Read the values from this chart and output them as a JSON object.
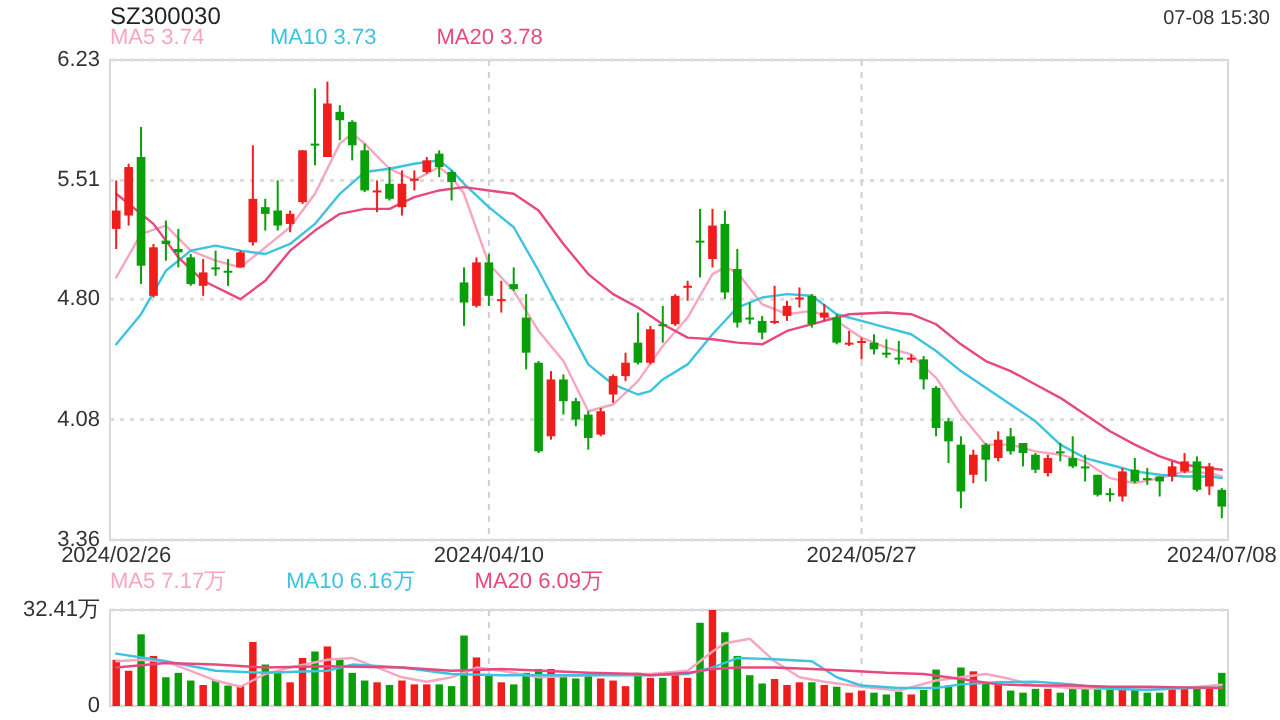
{
  "chart_data": [
    {
      "type": "candlestick",
      "title": "SZ300030",
      "annotations": [
        "07-08 15:30"
      ],
      "legend": "top left",
      "grid": true,
      "categories": [
        "2024/02/26",
        null,
        null,
        null,
        null,
        null,
        null,
        null,
        null,
        null,
        null,
        null,
        null,
        null,
        null,
        null,
        null,
        null,
        null,
        null,
        null,
        null,
        null,
        null,
        null,
        null,
        null,
        null,
        null,
        null,
        "2024/04/10",
        null,
        null,
        null,
        null,
        null,
        null,
        null,
        null,
        null,
        null,
        null,
        null,
        null,
        null,
        null,
        null,
        null,
        null,
        null,
        null,
        null,
        null,
        null,
        null,
        null,
        null,
        null,
        null,
        null,
        "2024/05/27",
        null,
        null,
        null,
        null,
        null,
        null,
        null,
        null,
        null,
        null,
        null,
        null,
        null,
        null,
        null,
        null,
        null,
        null,
        null,
        null,
        null,
        null,
        null,
        null,
        null,
        null,
        null,
        null,
        "2024/07/08"
      ],
      "ylim": [
        3.36,
        6.23
      ],
      "yticks": [
        6.23,
        5.51,
        {
          "value": 4.8,
          "label": "4.80"
        },
        4.08,
        3.36
      ],
      "series": [
        {
          "type": "line",
          "name": "MA5 3.74",
          "color": "#f7a6c0",
          "values": [
            4.93,
            null,
            5.19,
            null,
            5.24,
            null,
            5.09,
            null,
            5.03,
            null,
            4.99,
            null,
            5.11,
            null,
            5.23,
            null,
            5.43,
            null,
            5.73,
            5.79,
            5.73,
            null,
            5.58,
            null,
            5.51,
            null,
            5.59,
            5.53,
            5.43,
            null,
            5.01,
            null,
            4.85,
            null,
            4.61,
            null,
            4.43,
            null,
            4.13,
            null,
            4.17,
            null,
            4.31,
            null,
            4.52,
            null,
            4.69,
            null,
            4.95,
            4.99,
            4.96,
            null,
            4.77,
            null,
            4.71,
            null,
            4.73,
            null,
            4.67,
            null,
            4.57,
            null,
            4.51,
            null,
            4.47,
            null,
            4.33,
            null,
            4.11,
            null,
            3.93,
            null,
            3.93,
            null,
            3.89,
            null,
            3.87,
            null,
            3.83,
            null,
            3.73,
            null,
            3.7,
            null,
            3.73,
            null,
            3.77,
            null,
            3.76,
            3.74
          ]
        },
        {
          "type": "line",
          "name": "MA10 3.73",
          "color": "#3cc3df",
          "values": [
            4.53,
            null,
            4.71,
            null,
            4.97,
            null,
            5.09,
            null,
            5.12,
            null,
            5.09,
            null,
            5.07,
            null,
            5.13,
            null,
            5.25,
            null,
            5.43,
            null,
            5.56,
            null,
            5.58,
            null,
            5.61,
            null,
            5.63,
            5.57,
            5.49,
            null,
            5.35,
            null,
            5.23,
            null,
            4.97,
            null,
            4.69,
            null,
            4.41,
            null,
            4.29,
            null,
            4.23,
            4.25,
            4.32,
            null,
            4.41,
            null,
            4.59,
            null,
            4.75,
            null,
            4.81,
            null,
            4.83,
            null,
            4.82,
            null,
            4.71,
            null,
            4.67,
            null,
            4.63,
            null,
            4.59,
            null,
            4.49,
            null,
            4.37,
            null,
            4.27,
            null,
            4.17,
            null,
            4.07,
            null,
            3.93,
            null,
            3.85,
            null,
            3.81,
            null,
            3.77,
            null,
            3.75,
            null,
            3.74,
            null,
            3.74,
            3.73
          ]
        },
        {
          "type": "line",
          "name": "MA20 3.78",
          "color": "#e9487e",
          "values": [
            5.43,
            null,
            null,
            5.25,
            null,
            5.05,
            null,
            4.91,
            null,
            null,
            4.8,
            null,
            4.91,
            null,
            5.09,
            null,
            5.21,
            null,
            5.31,
            null,
            5.34,
            null,
            5.34,
            null,
            5.41,
            null,
            5.45,
            null,
            5.47,
            null,
            5.45,
            null,
            5.43,
            null,
            5.33,
            null,
            5.13,
            null,
            4.95,
            null,
            4.83,
            null,
            4.75,
            null,
            4.65,
            null,
            4.57,
            null,
            4.56,
            null,
            4.54,
            null,
            4.53,
            null,
            4.61,
            null,
            null,
            4.67,
            null,
            4.71,
            null,
            null,
            4.72,
            null,
            4.71,
            null,
            4.65,
            null,
            4.53,
            null,
            4.43,
            null,
            4.37,
            null,
            4.29,
            null,
            4.21,
            null,
            4.11,
            null,
            4.01,
            null,
            3.93,
            null,
            3.86,
            null,
            3.81,
            null,
            3.79,
            3.78
          ]
        },
        {
          "type": "candlestick",
          "ohlc": [
            [
              5.22,
              5.51,
              5.1,
              5.33
            ],
            [
              5.3,
              5.61,
              5.24,
              5.59
            ],
            [
              5.65,
              5.83,
              4.89,
              5.0
            ],
            [
              4.82,
              5.13,
              4.81,
              5.11
            ],
            [
              5.15,
              5.27,
              5.03,
              5.13
            ],
            [
              5.1,
              5.22,
              4.99,
              5.08
            ],
            [
              5.05,
              5.07,
              4.88,
              4.89
            ],
            [
              4.88,
              5.04,
              4.82,
              4.96
            ],
            [
              4.99,
              5.09,
              4.94,
              4.98
            ],
            [
              4.97,
              5.04,
              4.88,
              4.96
            ],
            [
              4.99,
              5.09,
              4.99,
              5.08
            ],
            [
              5.14,
              5.72,
              5.12,
              5.4
            ],
            [
              5.35,
              5.4,
              5.21,
              5.31
            ],
            [
              5.33,
              5.51,
              5.21,
              5.24
            ],
            [
              5.25,
              5.33,
              5.2,
              5.31
            ],
            [
              5.38,
              5.69,
              5.37,
              5.69
            ],
            [
              5.73,
              6.06,
              5.6,
              5.72
            ],
            [
              5.65,
              6.1,
              5.65,
              5.97
            ],
            [
              5.92,
              5.96,
              5.75,
              5.87
            ],
            [
              5.86,
              5.87,
              5.63,
              5.72
            ],
            [
              5.69,
              5.73,
              5.44,
              5.45
            ],
            [
              5.44,
              5.51,
              5.32,
              5.45
            ],
            [
              5.49,
              5.59,
              5.39,
              5.4
            ],
            [
              5.35,
              5.57,
              5.3,
              5.49
            ],
            [
              5.51,
              5.57,
              5.45,
              5.52
            ],
            [
              5.56,
              5.65,
              5.55,
              5.63
            ],
            [
              5.67,
              5.69,
              5.53,
              5.59
            ],
            [
              5.56,
              5.57,
              5.39,
              5.5
            ],
            [
              4.9,
              4.99,
              4.64,
              4.78
            ],
            [
              4.76,
              5.05,
              4.75,
              5.02
            ],
            [
              5.02,
              5.07,
              4.76,
              4.82
            ],
            [
              4.79,
              4.91,
              4.72,
              4.8
            ],
            [
              4.89,
              4.99,
              4.85,
              4.86
            ],
            [
              4.69,
              4.83,
              4.38,
              4.48
            ],
            [
              4.42,
              4.43,
              3.88,
              3.89
            ],
            [
              3.98,
              4.37,
              3.96,
              4.32
            ],
            [
              4.32,
              4.35,
              4.11,
              4.19
            ],
            [
              4.19,
              4.21,
              4.04,
              4.08
            ],
            [
              4.11,
              4.13,
              3.9,
              3.97
            ],
            [
              3.99,
              4.15,
              3.98,
              4.13
            ],
            [
              4.23,
              4.35,
              4.18,
              4.34
            ],
            [
              4.34,
              4.48,
              4.31,
              4.42
            ],
            [
              4.54,
              4.72,
              4.41,
              4.42
            ],
            [
              4.42,
              4.64,
              4.41,
              4.62
            ],
            [
              4.65,
              4.76,
              4.54,
              4.64
            ],
            [
              4.65,
              4.83,
              4.64,
              4.82
            ],
            [
              4.87,
              4.91,
              4.79,
              4.88
            ],
            [
              5.15,
              5.34,
              4.93,
              5.14
            ],
            [
              5.04,
              5.34,
              4.99,
              5.24
            ],
            [
              5.25,
              5.33,
              4.8,
              4.84
            ],
            [
              4.98,
              5.1,
              4.63,
              4.66
            ],
            [
              4.69,
              4.78,
              4.65,
              4.68
            ],
            [
              4.67,
              4.7,
              4.56,
              4.6
            ],
            [
              4.66,
              4.88,
              4.65,
              4.67
            ],
            [
              4.7,
              4.79,
              4.67,
              4.76
            ],
            [
              4.8,
              4.87,
              4.75,
              4.81
            ],
            [
              4.82,
              4.83,
              4.63,
              4.65
            ],
            [
              4.69,
              4.77,
              4.67,
              4.72
            ],
            [
              4.69,
              4.71,
              4.53,
              4.54
            ],
            [
              4.53,
              4.61,
              4.52,
              4.54
            ],
            [
              4.54,
              4.57,
              4.44,
              4.55
            ],
            [
              4.54,
              4.59,
              4.47,
              4.5
            ],
            [
              4.48,
              4.56,
              4.45,
              4.47
            ],
            [
              4.45,
              4.55,
              4.41,
              4.44
            ],
            [
              4.44,
              4.47,
              4.42,
              4.45
            ],
            [
              4.44,
              4.46,
              4.26,
              4.32
            ],
            [
              4.27,
              4.28,
              3.98,
              4.03
            ],
            [
              4.07,
              4.09,
              3.82,
              3.95
            ],
            [
              3.93,
              3.98,
              3.55,
              3.65
            ],
            [
              3.75,
              3.9,
              3.7,
              3.87
            ],
            [
              3.93,
              3.94,
              3.71,
              3.84
            ],
            [
              3.85,
              4.01,
              3.83,
              3.96
            ],
            [
              3.98,
              4.03,
              3.87,
              3.89
            ],
            [
              3.94,
              3.94,
              3.8,
              3.88
            ],
            [
              3.87,
              3.88,
              3.76,
              3.78
            ],
            [
              3.76,
              3.87,
              3.74,
              3.85
            ],
            [
              3.89,
              3.94,
              3.83,
              3.88
            ],
            [
              3.85,
              3.98,
              3.79,
              3.8
            ],
            [
              3.8,
              3.87,
              3.71,
              3.79
            ],
            [
              3.75,
              3.75,
              3.62,
              3.63
            ],
            [
              3.64,
              3.67,
              3.59,
              3.63
            ],
            [
              3.62,
              3.79,
              3.59,
              3.77
            ],
            [
              3.78,
              3.85,
              3.7,
              3.71
            ],
            [
              3.73,
              3.79,
              3.69,
              3.72
            ],
            [
              3.74,
              3.74,
              3.62,
              3.71
            ],
            [
              3.74,
              3.83,
              3.71,
              3.8
            ],
            [
              3.77,
              3.88,
              3.76,
              3.83
            ],
            [
              3.83,
              3.86,
              3.65,
              3.66
            ],
            [
              3.68,
              3.82,
              3.63,
              3.8
            ],
            [
              3.66,
              3.67,
              3.49,
              3.56
            ]
          ],
          "colors": [
            "#f01d1d",
            "#f01d1d",
            "#0a9e0a",
            "#f01d1d",
            "#0a9e0a",
            "#0a9e0a",
            "#0a9e0a",
            "#f01d1d",
            "#0a9e0a",
            "#0a9e0a",
            "#f01d1d",
            "#f01d1d",
            "#0a9e0a",
            "#0a9e0a",
            "#f01d1d",
            "#f01d1d",
            "#0a9e0a",
            "#f01d1d",
            "#0a9e0a",
            "#0a9e0a",
            "#0a9e0a",
            "#f01d1d",
            "#0a9e0a",
            "#f01d1d",
            "#f01d1d",
            "#f01d1d",
            "#0a9e0a",
            "#0a9e0a",
            "#0a9e0a",
            "#f01d1d",
            "#0a9e0a",
            "#f01d1d",
            "#0a9e0a",
            "#0a9e0a",
            "#0a9e0a",
            "#f01d1d",
            "#0a9e0a",
            "#0a9e0a",
            "#0a9e0a",
            "#f01d1d",
            "#f01d1d",
            "#f01d1d",
            "#0a9e0a",
            "#f01d1d",
            "#0a9e0a",
            "#f01d1d",
            "#f01d1d",
            "#0a9e0a",
            "#f01d1d",
            "#0a9e0a",
            "#0a9e0a",
            "#0a9e0a",
            "#0a9e0a",
            "#f01d1d",
            "#f01d1d",
            "#f01d1d",
            "#0a9e0a",
            "#f01d1d",
            "#0a9e0a",
            "#f01d1d",
            "#f01d1d",
            "#0a9e0a",
            "#0a9e0a",
            "#0a9e0a",
            "#f01d1d",
            "#0a9e0a",
            "#0a9e0a",
            "#0a9e0a",
            "#0a9e0a",
            "#f01d1d",
            "#0a9e0a",
            "#f01d1d",
            "#0a9e0a",
            "#0a9e0a",
            "#0a9e0a",
            "#f01d1d",
            "#0a9e0a",
            "#0a9e0a",
            "#0a9e0a",
            "#0a9e0a",
            "#0a9e0a",
            "#f01d1d",
            "#0a9e0a",
            "#0a9e0a",
            "#0a9e0a",
            "#f01d1d",
            "#f01d1d",
            "#0a9e0a",
            "#f01d1d",
            "#0a9e0a"
          ]
        }
      ]
    },
    {
      "type": "bar",
      "legend": "top left",
      "grid": true,
      "tick_labels": "y",
      "categories": [
        null,
        null,
        null,
        null,
        null,
        null,
        null,
        null,
        null,
        null,
        null,
        null,
        null,
        null,
        null,
        null,
        null,
        null,
        null,
        null,
        null,
        null,
        null,
        null,
        null,
        null,
        null,
        null,
        null,
        null,
        null,
        null,
        null,
        null,
        null,
        null,
        null,
        null,
        null,
        null,
        null,
        null,
        null,
        null,
        null,
        null,
        null,
        null,
        null,
        null,
        null,
        null,
        null,
        null,
        null,
        null,
        null,
        null,
        null,
        null,
        null,
        null,
        null,
        null,
        null,
        null,
        null,
        null,
        null,
        null,
        null,
        null,
        null,
        null,
        null,
        null,
        null,
        null,
        null,
        null,
        null,
        null,
        null,
        null,
        null,
        null,
        null,
        null,
        null,
        null
      ],
      "ylim": [
        0,
        32.41
      ],
      "yticks": [
        {
          "value": 32.41,
          "label": "32.41万"
        },
        0
      ],
      "series": [
        {
          "type": "bar",
          "values": [
            15.6,
            11.9,
            24.2,
            16.9,
            9.7,
            11.2,
            8.6,
            7.1,
            8.6,
            6.9,
            6.9,
            21.6,
            14.0,
            11.2,
            8.0,
            16.2,
            18.4,
            20.1,
            15.6,
            11.2,
            8.6,
            8.0,
            7.1,
            8.6,
            7.3,
            7.3,
            7.3,
            6.7,
            23.8,
            16.4,
            10.2,
            8.0,
            7.3,
            11.2,
            12.5,
            12.5,
            10.8,
            9.3,
            10.2,
            9.3,
            8.6,
            6.7,
            11.2,
            9.5,
            9.5,
            11.2,
            9.5,
            28.1,
            32.41,
            24.9,
            16.9,
            10.4,
            7.6,
            9.1,
            7.1,
            8.0,
            8.0,
            7.1,
            6.5,
            4.5,
            5.2,
            4.5,
            3.9,
            4.8,
            3.9,
            5.4,
            12.3,
            6.9,
            13.0,
            11.7,
            7.6,
            7.6,
            5.2,
            4.5,
            5.8,
            5.8,
            4.5,
            6.5,
            5.8,
            6.5,
            5.4,
            5.8,
            5.8,
            4.5,
            4.5,
            6.5,
            5.8,
            5.8,
            5.8,
            11.2
          ],
          "colors": [
            "#f01d1d",
            "#f01d1d",
            "#0a9e0a",
            "#f01d1d",
            "#0a9e0a",
            "#0a9e0a",
            "#0a9e0a",
            "#f01d1d",
            "#0a9e0a",
            "#0a9e0a",
            "#f01d1d",
            "#f01d1d",
            "#0a9e0a",
            "#0a9e0a",
            "#f01d1d",
            "#f01d1d",
            "#0a9e0a",
            "#f01d1d",
            "#0a9e0a",
            "#0a9e0a",
            "#0a9e0a",
            "#f01d1d",
            "#0a9e0a",
            "#f01d1d",
            "#f01d1d",
            "#f01d1d",
            "#0a9e0a",
            "#0a9e0a",
            "#0a9e0a",
            "#f01d1d",
            "#0a9e0a",
            "#f01d1d",
            "#0a9e0a",
            "#0a9e0a",
            "#0a9e0a",
            "#f01d1d",
            "#0a9e0a",
            "#0a9e0a",
            "#0a9e0a",
            "#f01d1d",
            "#f01d1d",
            "#f01d1d",
            "#0a9e0a",
            "#f01d1d",
            "#0a9e0a",
            "#f01d1d",
            "#f01d1d",
            "#0a9e0a",
            "#f01d1d",
            "#0a9e0a",
            "#0a9e0a",
            "#0a9e0a",
            "#0a9e0a",
            "#f01d1d",
            "#f01d1d",
            "#f01d1d",
            "#0a9e0a",
            "#f01d1d",
            "#0a9e0a",
            "#f01d1d",
            "#f01d1d",
            "#0a9e0a",
            "#0a9e0a",
            "#0a9e0a",
            "#f01d1d",
            "#0a9e0a",
            "#0a9e0a",
            "#0a9e0a",
            "#0a9e0a",
            "#f01d1d",
            "#0a9e0a",
            "#f01d1d",
            "#0a9e0a",
            "#0a9e0a",
            "#0a9e0a",
            "#f01d1d",
            "#0a9e0a",
            "#0a9e0a",
            "#0a9e0a",
            "#0a9e0a",
            "#0a9e0a",
            "#f01d1d",
            "#0a9e0a",
            "#0a9e0a",
            "#0a9e0a",
            "#f01d1d",
            "#f01d1d",
            "#0a9e0a",
            "#f01d1d",
            "#0a9e0a"
          ]
        },
        {
          "type": "line",
          "name": "MA5 7.17万",
          "color": "#f7a6c0",
          "values": [
            15.1,
            null,
            15.6,
            null,
            15.1,
            null,
            11.9,
            null,
            8.6,
            null,
            6.5,
            null,
            10.8,
            null,
            13.0,
            null,
            null,
            15.6,
            null,
            16.2,
            null,
            13.0,
            null,
            9.7,
            null,
            8.2,
            null,
            9.7,
            null,
            13.0,
            null,
            11.9,
            null,
            null,
            9.7,
            null,
            null,
            null,
            10.4,
            null,
            null,
            null,
            10.8,
            10.8,
            null,
            null,
            11.9,
            15.1,
            18.4,
            21.2,
            null,
            22.7,
            null,
            15.1,
            null,
            9.7,
            null,
            8.2,
            null,
            null,
            6.5,
            null,
            null,
            5.2,
            null,
            null,
            8.6,
            null,
            9.7,
            null,
            10.8,
            null,
            9.1,
            null,
            6.9,
            null,
            null,
            6.1,
            null,
            null,
            5.8,
            null,
            null,
            6.1,
            null,
            null,
            6.1,
            null,
            null,
            7.17
          ]
        },
        {
          "type": "line",
          "name": "MA10 6.16万",
          "color": "#3cc3df",
          "values": [
            17.7,
            null,
            null,
            null,
            15.1,
            null,
            null,
            null,
            11.9,
            null,
            null,
            null,
            11.2,
            null,
            null,
            null,
            null,
            11.9,
            null,
            14.0,
            null,
            null,
            null,
            13.0,
            null,
            null,
            null,
            10.8,
            null,
            null,
            null,
            10.4,
            null,
            null,
            null,
            null,
            null,
            null,
            10.4,
            null,
            null,
            null,
            10.4,
            10.4,
            null,
            null,
            10.8,
            null,
            13.0,
            null,
            16.2,
            null,
            null,
            15.8,
            null,
            null,
            15.1,
            null,
            9.7,
            null,
            6.9,
            null,
            null,
            6.1,
            null,
            null,
            6.1,
            null,
            7.3,
            null,
            null,
            8.0,
            null,
            null,
            8.2,
            null,
            null,
            7.3,
            null,
            null,
            5.8,
            null,
            null,
            5.4,
            null,
            null,
            6.1,
            null,
            null,
            6.16
          ]
        },
        {
          "type": "line",
          "name": "MA20 6.09万",
          "color": "#e9487e",
          "values": [
            13.0,
            null,
            null,
            null,
            14.5,
            null,
            null,
            null,
            14.0,
            null,
            null,
            null,
            13.0,
            null,
            null,
            null,
            null,
            13.4,
            null,
            null,
            null,
            null,
            null,
            13.0,
            null,
            null,
            null,
            11.9,
            null,
            null,
            null,
            12.5,
            null,
            null,
            null,
            null,
            null,
            null,
            11.2,
            null,
            null,
            null,
            10.8,
            10.4,
            null,
            null,
            11.2,
            null,
            12.5,
            null,
            13.0,
            null,
            null,
            13.0,
            null,
            null,
            12.5,
            null,
            null,
            11.9,
            null,
            null,
            11.2,
            null,
            null,
            10.8,
            null,
            null,
            9.1,
            null,
            null,
            7.3,
            null,
            null,
            6.9,
            null,
            null,
            6.9,
            null,
            null,
            6.5,
            null,
            null,
            6.5,
            null,
            null,
            6.3,
            null,
            null,
            6.09
          ]
        }
      ]
    }
  ]
}
